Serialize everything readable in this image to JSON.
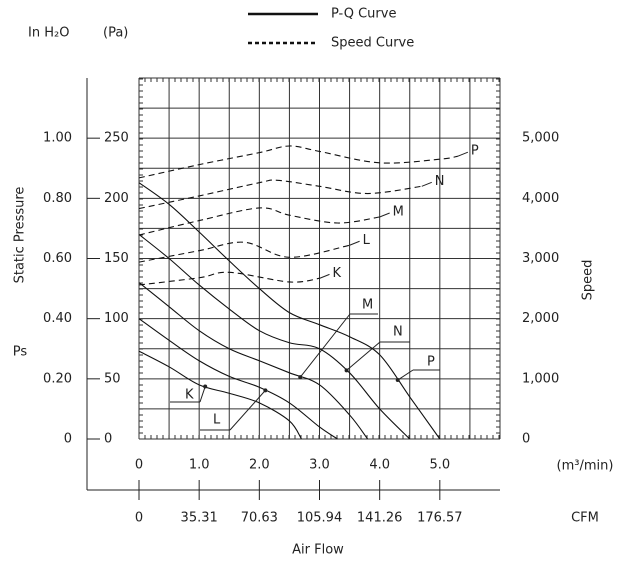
{
  "chart_data": {
    "type": "line",
    "legend": [
      {
        "label": "P-Q Curve",
        "dash": "solid"
      },
      {
        "label": "Speed Curve",
        "dash": "dashed"
      }
    ],
    "xlabel": "Air Flow",
    "xunit": "(m³/min)",
    "x2unit": "CFM",
    "ylabel": "Static Pressure",
    "ysymbol": "Ps",
    "yunit": "(Pa)",
    "y3unit": "In H₂O",
    "y2label": "Speed",
    "xlim": [
      0,
      6
    ],
    "xticks": [
      0,
      {
        "value": 1,
        "label": "1.0"
      },
      {
        "value": 2,
        "label": "2.0"
      },
      {
        "value": 3,
        "label": "3.0"
      },
      {
        "value": 4,
        "label": "4.0"
      },
      {
        "value": 5,
        "label": "5.0"
      }
    ],
    "x2lim": [
      0,
      211.89
    ],
    "x2ticks": [
      0,
      35.31,
      70.63,
      105.94,
      141.26,
      176.57
    ],
    "xgrid": [
      0,
      0.5,
      1,
      1.5,
      2,
      2.5,
      3,
      3.5,
      4,
      4.5,
      5,
      5.5,
      6
    ],
    "ylim": [
      0,
      300
    ],
    "yticks": [
      0,
      50,
      100,
      150,
      200,
      250
    ],
    "ygrid": [
      0,
      25,
      50,
      75,
      100,
      125,
      150,
      175,
      200,
      225,
      250,
      275,
      300
    ],
    "y3lim": [
      0,
      1.2
    ],
    "y3ticks": [
      0,
      {
        "value": 0.2,
        "label": "0.20"
      },
      {
        "value": 0.4,
        "label": "0.40"
      },
      {
        "value": 0.6,
        "label": "0.60"
      },
      {
        "value": 0.8,
        "label": "0.80"
      },
      {
        "value": 1,
        "label": "1.00"
      }
    ],
    "y2lim": [
      0,
      6000
    ],
    "y2ticks": [
      0,
      {
        "value": 1000,
        "label": "1,000"
      },
      {
        "value": 2000,
        "label": "2,000"
      },
      {
        "value": 3000,
        "label": "3,000"
      },
      {
        "value": 4000,
        "label": "4,000"
      },
      {
        "value": 5000,
        "label": "5,000"
      }
    ],
    "series": [
      {
        "name": "K",
        "dash": "solid",
        "color": "#111",
        "x": [
          0,
          0.5,
          1,
          1.5,
          2,
          2.5,
          2.7
        ],
        "values": [
          73,
          60,
          45,
          38,
          30,
          15,
          0
        ]
      },
      {
        "name": "L",
        "dash": "solid",
        "color": "#111",
        "x": [
          0,
          0.5,
          1,
          1.5,
          2,
          2.5,
          3,
          3.3
        ],
        "values": [
          100,
          82,
          65,
          52,
          43,
          30,
          10,
          0
        ]
      },
      {
        "name": "M",
        "dash": "solid",
        "color": "#111",
        "x": [
          0,
          0.5,
          1,
          1.5,
          2,
          2.5,
          3,
          3.5,
          3.8
        ],
        "values": [
          130,
          110,
          90,
          75,
          65,
          55,
          45,
          20,
          0
        ]
      },
      {
        "name": "N",
        "dash": "solid",
        "color": "#111",
        "x": [
          0,
          0.5,
          1,
          1.5,
          2,
          2.5,
          3,
          3.5,
          4,
          4.5
        ],
        "values": [
          170,
          150,
          128,
          108,
          90,
          80,
          75,
          55,
          25,
          0
        ]
      },
      {
        "name": "P",
        "dash": "solid",
        "color": "#111",
        "x": [
          0,
          0.5,
          1,
          1.5,
          2,
          2.5,
          3,
          3.5,
          4,
          4.5,
          5
        ],
        "values": [
          213,
          195,
          172,
          148,
          125,
          105,
          95,
          85,
          70,
          35,
          0
        ]
      },
      {
        "name": "K",
        "dash": "dashed",
        "axis": "y2",
        "color": "#111",
        "x": [
          0,
          1,
          1.5,
          2.5,
          3
        ],
        "values": [
          2560,
          2680,
          2770,
          2610,
          2670
        ]
      },
      {
        "name": "L",
        "dash": "dashed",
        "axis": "y2",
        "color": "#111",
        "x": [
          0,
          1,
          1.75,
          2.5,
          3.5
        ],
        "values": [
          2940,
          3130,
          3270,
          3020,
          3220
        ]
      },
      {
        "name": "M",
        "dash": "dashed",
        "axis": "y2",
        "color": "#111",
        "x": [
          0,
          1,
          2,
          2.5,
          3.3,
          4
        ],
        "values": [
          3390,
          3630,
          3840,
          3720,
          3590,
          3690
        ]
      },
      {
        "name": "N",
        "dash": "dashed",
        "axis": "y2",
        "color": "#111",
        "x": [
          0,
          1,
          2,
          2.3,
          3,
          3.8,
          4.7
        ],
        "values": [
          3830,
          4040,
          4260,
          4300,
          4200,
          4080,
          4200
        ]
      },
      {
        "name": "P",
        "dash": "dashed",
        "axis": "y2",
        "color": "#111",
        "x": [
          0,
          1,
          2,
          2.5,
          3,
          4,
          5,
          5.3
        ],
        "values": [
          4340,
          4560,
          4760,
          4870,
          4780,
          4590,
          4650,
          4700
        ]
      }
    ]
  }
}
